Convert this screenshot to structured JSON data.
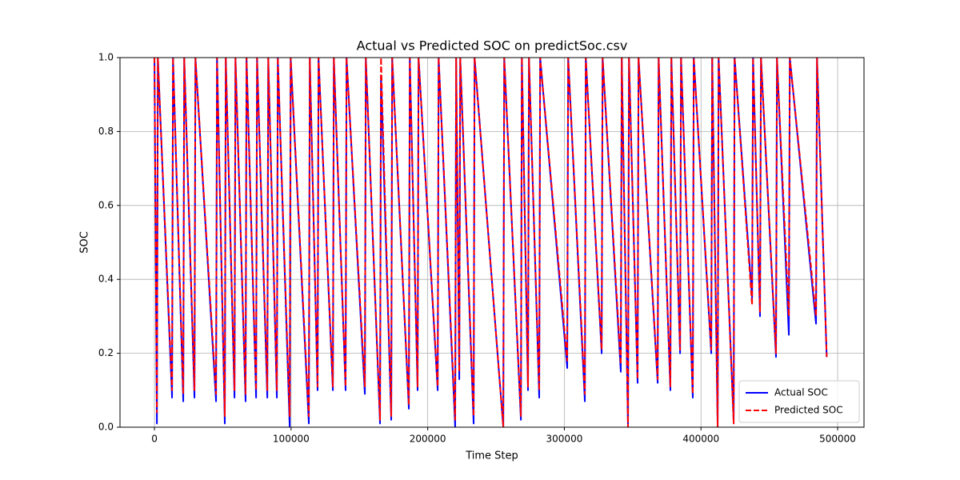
{
  "chart_data": {
    "type": "line",
    "title": "Actual vs Predicted SOC on predictSoc.csv",
    "x_label": "Time Step",
    "y_label": "SOC",
    "x": [
      0,
      1800,
      2500,
      12900,
      13600,
      21100,
      21800,
      29300,
      30000,
      45100,
      45800,
      51500,
      52200,
      58600,
      59300,
      66700,
      67400,
      74400,
      75100,
      82600,
      83300,
      89600,
      90300,
      99000,
      99700,
      113000,
      113700,
      119400,
      120100,
      130600,
      131300,
      139900,
      140600,
      154000,
      154700,
      165100,
      165800,
      173300,
      174000,
      186200,
      186900,
      192600,
      193300,
      207300,
      208000,
      220100,
      220800,
      223100,
      223800,
      233600,
      234300,
      255300,
      256000,
      268200,
      268900,
      273400,
      274100,
      281600,
      282300,
      302100,
      302800,
      315000,
      315700,
      327300,
      328000,
      341300,
      342000,
      346600,
      347300,
      353600,
      354300,
      368300,
      369000,
      377600,
      378300,
      384700,
      385400,
      394000,
      394700,
      407500,
      408200,
      412200,
      412900,
      423900,
      424600,
      437400,
      438100,
      443200,
      443900,
      454900,
      455600,
      464300,
      465000,
      484200,
      484900,
      492000
    ],
    "series": [
      {
        "name": "Actual SOC",
        "color": "#0000ff",
        "dashed": false,
        "values": [
          1,
          0.01,
          1,
          0.08,
          1,
          0.07,
          1,
          0.08,
          1,
          0.07,
          1,
          0.01,
          1,
          0.08,
          1,
          0.07,
          1,
          0.08,
          1,
          0.08,
          1,
          0.08,
          1,
          0,
          1,
          0.01,
          1,
          0.1,
          1,
          0.1,
          1,
          0.1,
          1,
          0.09,
          1,
          0.01,
          0.95,
          0.02,
          1,
          0.05,
          1,
          0.1,
          1,
          0.1,
          1,
          0,
          1,
          0.13,
          1,
          0.01,
          1,
          0,
          1,
          0.02,
          1,
          0.1,
          1,
          0.08,
          1,
          0.16,
          1,
          0.07,
          1,
          0.2,
          1,
          0.15,
          1,
          0,
          1,
          0.12,
          1,
          0.12,
          1,
          0.1,
          1,
          0.2,
          1,
          0.08,
          1,
          0.2,
          1,
          0,
          1,
          0.02,
          1,
          0.35,
          1,
          0.3,
          1,
          0.19,
          1,
          0.25,
          1,
          0.28,
          1,
          0.19
        ]
      },
      {
        "name": "Predicted SOC",
        "color": "#ff0000",
        "dashed": true,
        "values": [
          1,
          0.04,
          1,
          0.1,
          1,
          0.09,
          1,
          0.1,
          1,
          0.09,
          1,
          0.03,
          1,
          0.1,
          1,
          0.09,
          1,
          0.1,
          1,
          0.1,
          1,
          0.1,
          1,
          0.03,
          1,
          0.03,
          1,
          0.11,
          1,
          0.11,
          1,
          0.11,
          1,
          0.11,
          1,
          0.02,
          1,
          0.03,
          1,
          0.06,
          1,
          0.11,
          1,
          0.11,
          1,
          0.02,
          1,
          0.15,
          1,
          0.03,
          1,
          0,
          1,
          0.03,
          1,
          0.11,
          1,
          0.1,
          1,
          0.18,
          1,
          0.09,
          1,
          0.21,
          1,
          0.17,
          1,
          0,
          1,
          0.13,
          1,
          0.13,
          1,
          0.11,
          1,
          0.21,
          1,
          0.09,
          1,
          0.21,
          1,
          0,
          1,
          0.01,
          1,
          0.33,
          1,
          0.31,
          1,
          0.2,
          1,
          0.3,
          1,
          0.3,
          1,
          0.19
        ]
      }
    ],
    "xlim": [
      -25200,
      519300
    ],
    "ylim": [
      0,
      1
    ],
    "xticks": [
      0,
      100000,
      200000,
      300000,
      400000,
      500000
    ],
    "yticks": [
      {
        "value": 0,
        "label": "0.0"
      },
      0.2,
      0.4,
      0.6,
      0.8,
      {
        "value": 1,
        "label": "1.0"
      }
    ],
    "grid": true,
    "legend": "lower right"
  }
}
